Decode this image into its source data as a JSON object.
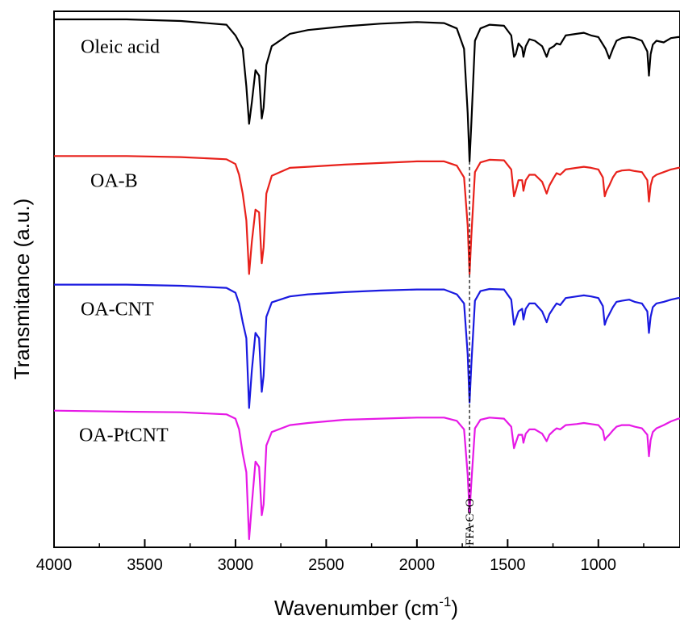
{
  "chart_data": {
    "type": "line",
    "xlabel": "Wavenumber (cm",
    "xlabel_sup": "-1",
    "xlabel_end": ")",
    "ylabel": "Transmitance (a.u.)",
    "xlim": [
      4000,
      550
    ],
    "x_reversed": true,
    "ylim": [
      0,
      1
    ],
    "y_ticks_labeled": false,
    "x_ticks": [
      4000,
      3500,
      3000,
      2500,
      2000,
      1500,
      1000
    ],
    "x_tick_labels": [
      "4000",
      "3500",
      "3000",
      "2500",
      "2000",
      "1500",
      "1000"
    ],
    "grid": false,
    "legend": "none",
    "annotation": {
      "text": "FFA C=O",
      "x": 1710
    },
    "series": [
      {
        "name": "Oleic acid",
        "color": "#000000",
        "baseline": 0.98,
        "points": [
          [
            4000,
            0.985
          ],
          [
            3600,
            0.985
          ],
          [
            3300,
            0.982
          ],
          [
            3050,
            0.975
          ],
          [
            3000,
            0.955
          ],
          [
            2960,
            0.93
          ],
          [
            2940,
            0.86
          ],
          [
            2925,
            0.79
          ],
          [
            2910,
            0.83
          ],
          [
            2890,
            0.89
          ],
          [
            2870,
            0.88
          ],
          [
            2855,
            0.8
          ],
          [
            2845,
            0.82
          ],
          [
            2830,
            0.9
          ],
          [
            2800,
            0.935
          ],
          [
            2700,
            0.958
          ],
          [
            2600,
            0.965
          ],
          [
            2400,
            0.972
          ],
          [
            2200,
            0.977
          ],
          [
            2000,
            0.98
          ],
          [
            1850,
            0.978
          ],
          [
            1780,
            0.968
          ],
          [
            1740,
            0.93
          ],
          [
            1720,
            0.81
          ],
          [
            1710,
            0.72
          ],
          [
            1700,
            0.79
          ],
          [
            1680,
            0.945
          ],
          [
            1650,
            0.968
          ],
          [
            1600,
            0.975
          ],
          [
            1520,
            0.973
          ],
          [
            1480,
            0.955
          ],
          [
            1465,
            0.915
          ],
          [
            1455,
            0.92
          ],
          [
            1440,
            0.94
          ],
          [
            1420,
            0.932
          ],
          [
            1413,
            0.915
          ],
          [
            1400,
            0.935
          ],
          [
            1380,
            0.948
          ],
          [
            1350,
            0.945
          ],
          [
            1310,
            0.935
          ],
          [
            1285,
            0.915
          ],
          [
            1270,
            0.93
          ],
          [
            1245,
            0.935
          ],
          [
            1230,
            0.94
          ],
          [
            1210,
            0.938
          ],
          [
            1180,
            0.955
          ],
          [
            1120,
            0.958
          ],
          [
            1080,
            0.96
          ],
          [
            1040,
            0.955
          ],
          [
            1000,
            0.952
          ],
          [
            960,
            0.93
          ],
          [
            940,
            0.912
          ],
          [
            920,
            0.93
          ],
          [
            900,
            0.945
          ],
          [
            870,
            0.95
          ],
          [
            830,
            0.952
          ],
          [
            800,
            0.95
          ],
          [
            760,
            0.945
          ],
          [
            730,
            0.925
          ],
          [
            721,
            0.88
          ],
          [
            712,
            0.92
          ],
          [
            700,
            0.938
          ],
          [
            680,
            0.945
          ],
          [
            640,
            0.942
          ],
          [
            600,
            0.95
          ],
          [
            560,
            0.952
          ],
          [
            550,
            0.952
          ]
        ]
      },
      {
        "name": "OA-B",
        "color": "#e8211b",
        "baseline": 0.73,
        "points": [
          [
            4000,
            0.73
          ],
          [
            3600,
            0.73
          ],
          [
            3300,
            0.728
          ],
          [
            3050,
            0.724
          ],
          [
            3000,
            0.715
          ],
          [
            2980,
            0.695
          ],
          [
            2960,
            0.66
          ],
          [
            2940,
            0.61
          ],
          [
            2925,
            0.51
          ],
          [
            2910,
            0.57
          ],
          [
            2890,
            0.63
          ],
          [
            2870,
            0.625
          ],
          [
            2855,
            0.53
          ],
          [
            2845,
            0.56
          ],
          [
            2830,
            0.66
          ],
          [
            2800,
            0.693
          ],
          [
            2700,
            0.708
          ],
          [
            2600,
            0.71
          ],
          [
            2400,
            0.714
          ],
          [
            2200,
            0.717
          ],
          [
            2000,
            0.72
          ],
          [
            1850,
            0.72
          ],
          [
            1780,
            0.712
          ],
          [
            1740,
            0.69
          ],
          [
            1720,
            0.6
          ],
          [
            1710,
            0.51
          ],
          [
            1700,
            0.58
          ],
          [
            1680,
            0.7
          ],
          [
            1650,
            0.718
          ],
          [
            1600,
            0.723
          ],
          [
            1520,
            0.722
          ],
          [
            1480,
            0.705
          ],
          [
            1465,
            0.655
          ],
          [
            1455,
            0.665
          ],
          [
            1440,
            0.685
          ],
          [
            1420,
            0.685
          ],
          [
            1413,
            0.665
          ],
          [
            1400,
            0.685
          ],
          [
            1380,
            0.695
          ],
          [
            1350,
            0.695
          ],
          [
            1310,
            0.682
          ],
          [
            1285,
            0.66
          ],
          [
            1270,
            0.675
          ],
          [
            1245,
            0.69
          ],
          [
            1230,
            0.698
          ],
          [
            1210,
            0.695
          ],
          [
            1180,
            0.705
          ],
          [
            1120,
            0.708
          ],
          [
            1080,
            0.71
          ],
          [
            1040,
            0.708
          ],
          [
            1000,
            0.705
          ],
          [
            975,
            0.69
          ],
          [
            965,
            0.655
          ],
          [
            955,
            0.665
          ],
          [
            940,
            0.675
          ],
          [
            920,
            0.69
          ],
          [
            900,
            0.7
          ],
          [
            870,
            0.703
          ],
          [
            830,
            0.704
          ],
          [
            800,
            0.702
          ],
          [
            760,
            0.7
          ],
          [
            730,
            0.685
          ],
          [
            721,
            0.645
          ],
          [
            712,
            0.675
          ],
          [
            700,
            0.69
          ],
          [
            680,
            0.695
          ],
          [
            640,
            0.7
          ],
          [
            600,
            0.705
          ],
          [
            560,
            0.708
          ],
          [
            550,
            0.708
          ]
        ]
      },
      {
        "name": "OA-CNT",
        "color": "#1a1ae0",
        "baseline": 0.49,
        "points": [
          [
            4000,
            0.49
          ],
          [
            3600,
            0.49
          ],
          [
            3300,
            0.488
          ],
          [
            3050,
            0.484
          ],
          [
            3000,
            0.475
          ],
          [
            2980,
            0.455
          ],
          [
            2960,
            0.42
          ],
          [
            2940,
            0.39
          ],
          [
            2925,
            0.26
          ],
          [
            2910,
            0.33
          ],
          [
            2890,
            0.4
          ],
          [
            2870,
            0.39
          ],
          [
            2855,
            0.29
          ],
          [
            2845,
            0.32
          ],
          [
            2830,
            0.43
          ],
          [
            2800,
            0.457
          ],
          [
            2700,
            0.468
          ],
          [
            2600,
            0.472
          ],
          [
            2400,
            0.476
          ],
          [
            2200,
            0.479
          ],
          [
            2000,
            0.481
          ],
          [
            1850,
            0.481
          ],
          [
            1780,
            0.472
          ],
          [
            1740,
            0.455
          ],
          [
            1720,
            0.36
          ],
          [
            1710,
            0.27
          ],
          [
            1700,
            0.34
          ],
          [
            1680,
            0.46
          ],
          [
            1650,
            0.478
          ],
          [
            1600,
            0.482
          ],
          [
            1520,
            0.481
          ],
          [
            1480,
            0.462
          ],
          [
            1465,
            0.415
          ],
          [
            1455,
            0.425
          ],
          [
            1440,
            0.44
          ],
          [
            1420,
            0.445
          ],
          [
            1413,
            0.425
          ],
          [
            1400,
            0.445
          ],
          [
            1380,
            0.455
          ],
          [
            1350,
            0.455
          ],
          [
            1310,
            0.44
          ],
          [
            1285,
            0.42
          ],
          [
            1270,
            0.435
          ],
          [
            1245,
            0.448
          ],
          [
            1230,
            0.455
          ],
          [
            1210,
            0.452
          ],
          [
            1180,
            0.465
          ],
          [
            1120,
            0.468
          ],
          [
            1080,
            0.47
          ],
          [
            1040,
            0.468
          ],
          [
            1000,
            0.465
          ],
          [
            975,
            0.45
          ],
          [
            965,
            0.415
          ],
          [
            955,
            0.425
          ],
          [
            940,
            0.435
          ],
          [
            920,
            0.448
          ],
          [
            900,
            0.458
          ],
          [
            870,
            0.46
          ],
          [
            830,
            0.462
          ],
          [
            800,
            0.458
          ],
          [
            760,
            0.455
          ],
          [
            730,
            0.44
          ],
          [
            721,
            0.4
          ],
          [
            712,
            0.43
          ],
          [
            700,
            0.448
          ],
          [
            680,
            0.455
          ],
          [
            640,
            0.458
          ],
          [
            600,
            0.462
          ],
          [
            560,
            0.465
          ],
          [
            550,
            0.465
          ]
        ]
      },
      {
        "name": "OA-PtCNT",
        "color": "#e619e6",
        "baseline": 0.255,
        "points": [
          [
            4000,
            0.255
          ],
          [
            3600,
            0.253
          ],
          [
            3300,
            0.252
          ],
          [
            3050,
            0.248
          ],
          [
            3000,
            0.24
          ],
          [
            2980,
            0.22
          ],
          [
            2960,
            0.175
          ],
          [
            2940,
            0.14
          ],
          [
            2925,
            0.015
          ],
          [
            2910,
            0.08
          ],
          [
            2890,
            0.16
          ],
          [
            2870,
            0.15
          ],
          [
            2855,
            0.06
          ],
          [
            2845,
            0.08
          ],
          [
            2830,
            0.19
          ],
          [
            2800,
            0.215
          ],
          [
            2700,
            0.228
          ],
          [
            2600,
            0.232
          ],
          [
            2400,
            0.238
          ],
          [
            2200,
            0.24
          ],
          [
            2000,
            0.242
          ],
          [
            1850,
            0.242
          ],
          [
            1780,
            0.236
          ],
          [
            1740,
            0.22
          ],
          [
            1720,
            0.135
          ],
          [
            1710,
            0.065
          ],
          [
            1700,
            0.12
          ],
          [
            1680,
            0.222
          ],
          [
            1650,
            0.238
          ],
          [
            1600,
            0.242
          ],
          [
            1520,
            0.24
          ],
          [
            1480,
            0.225
          ],
          [
            1465,
            0.185
          ],
          [
            1455,
            0.195
          ],
          [
            1440,
            0.21
          ],
          [
            1420,
            0.21
          ],
          [
            1413,
            0.195
          ],
          [
            1400,
            0.212
          ],
          [
            1380,
            0.22
          ],
          [
            1350,
            0.22
          ],
          [
            1310,
            0.212
          ],
          [
            1285,
            0.198
          ],
          [
            1270,
            0.21
          ],
          [
            1245,
            0.218
          ],
          [
            1230,
            0.222
          ],
          [
            1210,
            0.22
          ],
          [
            1180,
            0.228
          ],
          [
            1120,
            0.23
          ],
          [
            1080,
            0.232
          ],
          [
            1040,
            0.23
          ],
          [
            1000,
            0.228
          ],
          [
            975,
            0.218
          ],
          [
            965,
            0.2
          ],
          [
            955,
            0.205
          ],
          [
            940,
            0.21
          ],
          [
            920,
            0.218
          ],
          [
            900,
            0.225
          ],
          [
            870,
            0.228
          ],
          [
            830,
            0.228
          ],
          [
            800,
            0.225
          ],
          [
            760,
            0.222
          ],
          [
            730,
            0.21
          ],
          [
            721,
            0.17
          ],
          [
            712,
            0.2
          ],
          [
            700,
            0.215
          ],
          [
            680,
            0.222
          ],
          [
            640,
            0.228
          ],
          [
            600,
            0.235
          ],
          [
            560,
            0.24
          ],
          [
            550,
            0.24
          ]
        ]
      }
    ]
  }
}
